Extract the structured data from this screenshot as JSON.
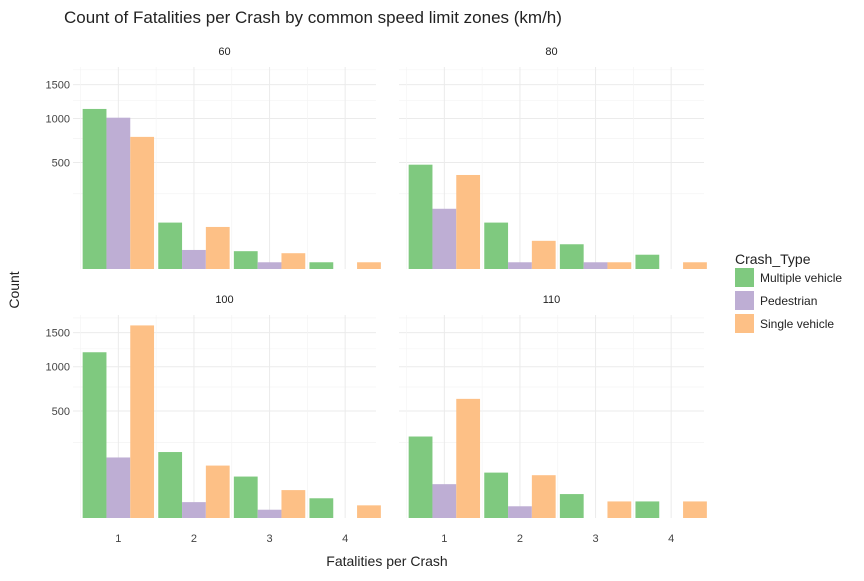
{
  "chart_data": {
    "type": "bar",
    "title": "Count of Fatalities per Crash by common speed limit zones (km/h)",
    "xlabel": "Fatalities per Crash",
    "ylabel": "Count",
    "legend_title": "Crash_Type",
    "legend_position": "right",
    "y_scale": "sqrt",
    "ylim": [
      0,
      1800
    ],
    "yticks": [
      "500",
      "1000",
      "1500"
    ],
    "categories": [
      "1",
      "2",
      "3",
      "4"
    ],
    "grid": true,
    "colors": [
      "#7fc97f",
      "#beaed4",
      "#fdc086"
    ],
    "series_names": [
      "Multiple vehicle",
      "Pedestrian",
      "Single vehicle"
    ],
    "panels": [
      {
        "label": "60",
        "series": [
          {
            "name": "Multiple vehicle",
            "values": [
              1130,
              95,
              14,
              2
            ]
          },
          {
            "name": "Pedestrian",
            "values": [
              1010,
              16,
              2,
              0
            ]
          },
          {
            "name": "Single vehicle",
            "values": [
              770,
              78,
              11,
              2
            ]
          }
        ]
      },
      {
        "label": "80",
        "series": [
          {
            "name": "Multiple vehicle",
            "values": [
              480,
              95,
              27,
              9
            ]
          },
          {
            "name": "Pedestrian",
            "values": [
              160,
              2,
              2,
              0
            ]
          },
          {
            "name": "Single vehicle",
            "values": [
              390,
              35,
              2,
              2
            ]
          }
        ]
      },
      {
        "label": "100",
        "series": [
          {
            "name": "Multiple vehicle",
            "values": [
              1200,
              190,
              75,
              17
            ]
          },
          {
            "name": "Pedestrian",
            "values": [
              160,
              11,
              3,
              0
            ]
          },
          {
            "name": "Single vehicle",
            "values": [
              1620,
              120,
              34,
              7
            ]
          }
        ]
      },
      {
        "label": "110",
        "series": [
          {
            "name": "Multiple vehicle",
            "values": [
              290,
              90,
              25,
              12
            ]
          },
          {
            "name": "Pedestrian",
            "values": [
              50,
              6,
              0,
              0
            ]
          },
          {
            "name": "Single vehicle",
            "values": [
              620,
              80,
              12,
              12
            ]
          }
        ]
      }
    ]
  }
}
